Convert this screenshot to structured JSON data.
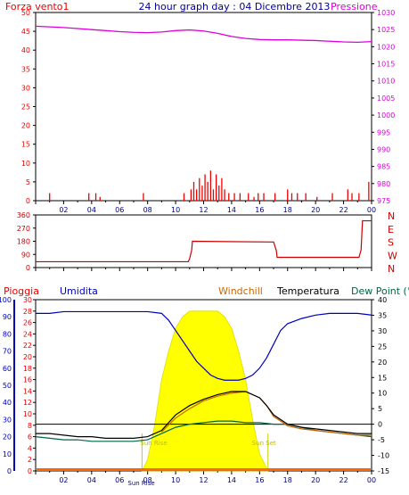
{
  "header": {
    "left_label": "Forza vento1",
    "title": "24 hour graph day : 04 Dicembre 2013",
    "right_label": "Pressione"
  },
  "colors": {
    "pressure": "#dd00dd",
    "wind": "#ee0000",
    "direction": "#cc0000",
    "rain": "#ee0000",
    "humidity": "#0000bb",
    "windchill": "#cc6600",
    "temperature": "#000000",
    "dewpoint": "#006644",
    "solar": "#ffff00"
  },
  "chart_data": [
    {
      "type": "bar",
      "name": "wind",
      "ylabel": "Forza vento1",
      "y_ticks": [
        "0",
        "5",
        "10",
        "15",
        "20",
        "25",
        "30",
        "35",
        "40",
        "45",
        "50"
      ],
      "ylim": [
        0,
        50
      ],
      "x_ticks": [
        "02",
        "04",
        "06",
        "08",
        "10",
        "12",
        "14",
        "16",
        "18",
        "20",
        "22",
        "00"
      ],
      "x_hours": [
        0,
        24
      ],
      "values": [
        [
          1.0,
          2
        ],
        [
          3.8,
          2
        ],
        [
          4.3,
          2
        ],
        [
          4.6,
          1
        ],
        [
          7.7,
          2
        ],
        [
          10.6,
          2
        ],
        [
          11.1,
          3
        ],
        [
          11.3,
          5
        ],
        [
          11.5,
          3
        ],
        [
          11.7,
          6
        ],
        [
          11.9,
          4
        ],
        [
          12.1,
          7
        ],
        [
          12.3,
          5
        ],
        [
          12.5,
          8
        ],
        [
          12.7,
          3
        ],
        [
          12.9,
          7
        ],
        [
          13.1,
          4
        ],
        [
          13.3,
          6
        ],
        [
          13.5,
          3
        ],
        [
          13.8,
          2
        ],
        [
          14.2,
          2
        ],
        [
          14.6,
          2
        ],
        [
          15.2,
          2
        ],
        [
          15.6,
          1
        ],
        [
          15.9,
          2
        ],
        [
          16.3,
          2
        ],
        [
          17.1,
          2
        ],
        [
          18.0,
          3
        ],
        [
          18.3,
          2
        ],
        [
          18.7,
          2
        ],
        [
          19.3,
          2
        ],
        [
          20.1,
          1
        ],
        [
          21.2,
          2
        ],
        [
          22.3,
          3
        ],
        [
          22.6,
          2
        ],
        [
          23.1,
          2
        ],
        [
          23.8,
          5
        ]
      ]
    },
    {
      "type": "line",
      "name": "pressure",
      "ylabel": "Pressione",
      "y_ticks": [
        "975",
        "980",
        "985",
        "990",
        "995",
        "1000",
        "1005",
        "1010",
        "1015",
        "1020",
        "1025",
        "1030"
      ],
      "ylim": [
        975,
        1030
      ],
      "x": [
        0,
        1,
        2,
        3,
        4,
        5,
        6,
        7,
        8,
        9,
        10,
        11,
        12,
        13,
        14,
        15,
        16,
        17,
        18,
        19,
        20,
        21,
        22,
        23,
        24
      ],
      "values": [
        1026.0,
        1025.8,
        1025.6,
        1025.3,
        1025.0,
        1024.7,
        1024.4,
        1024.2,
        1024.1,
        1024.3,
        1024.7,
        1024.9,
        1024.6,
        1023.9,
        1023.0,
        1022.4,
        1022.1,
        1022.0,
        1022.0,
        1021.9,
        1021.8,
        1021.6,
        1021.4,
        1021.3,
        1021.5
      ]
    },
    {
      "type": "line",
      "name": "wind_direction",
      "y_ticks": [
        "0",
        "90",
        "180",
        "270",
        "360"
      ],
      "compass": [
        "N",
        "W",
        "S",
        "E",
        "N"
      ],
      "ylim": [
        0,
        360
      ],
      "x": [
        0,
        10.9,
        11.0,
        11.15,
        11.2,
        16.8,
        17.0,
        17.2,
        17.25,
        23.1,
        23.25,
        23.35,
        24
      ],
      "values": [
        40,
        40,
        60,
        120,
        180,
        175,
        175,
        115,
        70,
        70,
        120,
        320,
        320
      ]
    },
    {
      "type": "line",
      "name": "lower",
      "labels": {
        "rain": "Pioggia",
        "humidity": "Umidita",
        "windchill": "Windchill",
        "temperature": "Temperatura",
        "dewpoint": "Dew Point (°C"
      },
      "rain_ticks": [
        "0",
        "2",
        "4",
        "6",
        "8",
        "10",
        "12",
        "14",
        "16",
        "18",
        "20",
        "22",
        "24",
        "26",
        "28",
        "30"
      ],
      "humidity_ticks": [
        "0",
        "10",
        "20",
        "30",
        "40",
        "50",
        "60",
        "70",
        "80",
        "90",
        "100"
      ],
      "temp_ticks": [
        "-15",
        "-10",
        "-5",
        "0",
        "5",
        "10",
        "15",
        "20",
        "25",
        "30",
        "35",
        "40"
      ],
      "rain_lim": [
        0,
        30
      ],
      "humidity_lim": [
        0,
        100
      ],
      "temp_lim": [
        -15,
        40
      ],
      "x_ticks": [
        "02",
        "04",
        "06",
        "08",
        "10",
        "12",
        "14",
        "16",
        "18",
        "20",
        "22",
        "00"
      ],
      "annotations": {
        "sunrise": "Sun Rise",
        "sunset": "Sun Set",
        "sunrise_marker": "Sun Rise"
      },
      "sunrise_h": 7.6,
      "sunset_h": 16.6,
      "humidity": {
        "x": [
          0,
          1,
          2,
          3,
          4,
          5,
          6,
          7,
          8,
          9,
          9.5,
          10,
          10.5,
          11,
          11.5,
          12,
          12.5,
          13,
          13.5,
          14,
          14.5,
          15,
          15.5,
          16,
          16.5,
          17,
          17.5,
          18,
          19,
          20,
          21,
          22,
          23,
          24
        ],
        "values": [
          92,
          92,
          93,
          93,
          93,
          93,
          93,
          93,
          93,
          92,
          88,
          82,
          76,
          70,
          64,
          60,
          56,
          54,
          53,
          53,
          53,
          54,
          56,
          60,
          66,
          74,
          82,
          86,
          89,
          91,
          92,
          92,
          92,
          91
        ]
      },
      "temperature": {
        "x": [
          0,
          1,
          2,
          3,
          4,
          5,
          6,
          7,
          8,
          9,
          10,
          11,
          12,
          13,
          14,
          15,
          16,
          16.5,
          17,
          18,
          19,
          20,
          21,
          22,
          23,
          24
        ],
        "values": [
          -3,
          -3,
          -3.5,
          -4,
          -4,
          -4.5,
          -4.5,
          -4.5,
          -4,
          -2,
          3,
          6,
          8,
          9.5,
          10.5,
          10.5,
          8.5,
          6,
          3,
          0,
          -1,
          -1.5,
          -2,
          -2.5,
          -3,
          -3
        ]
      },
      "windchill": {
        "x": [
          9,
          10,
          11,
          12,
          13,
          14,
          15,
          16,
          16.5,
          17,
          18,
          19,
          20,
          21,
          22,
          23,
          24
        ],
        "values": [
          -2.5,
          2,
          5,
          7.5,
          9,
          10,
          10.5,
          8.5,
          6,
          2.5,
          -0.5,
          -1.5,
          -2,
          -2.5,
          -3,
          -3.5,
          -3.5
        ]
      },
      "dewpoint": {
        "x": [
          0,
          1,
          2,
          3,
          4,
          5,
          6,
          7,
          8,
          9,
          10,
          11,
          12,
          13,
          14,
          15,
          16,
          17,
          18,
          19,
          20,
          21,
          22,
          23,
          24
        ],
        "values": [
          -4,
          -4.5,
          -5,
          -5,
          -5.5,
          -5.5,
          -5.5,
          -5.5,
          -5,
          -3,
          -1,
          0,
          0.5,
          1,
          1,
          0.5,
          0.5,
          0,
          0,
          -1,
          -2,
          -2.5,
          -3,
          -3.5,
          -4
        ]
      },
      "solar": {
        "x": [
          7.6,
          8,
          8.5,
          9,
          9.5,
          10,
          10.5,
          11,
          11.5,
          12,
          12.5,
          13,
          13.5,
          14,
          14.5,
          15,
          15.5,
          16,
          16.6
        ],
        "values": [
          0,
          2,
          8,
          16,
          21,
          25,
          27,
          28,
          28,
          28,
          28,
          28,
          27,
          25,
          21,
          16,
          9,
          3,
          0
        ]
      },
      "reference_line_temp": 0
    }
  ]
}
